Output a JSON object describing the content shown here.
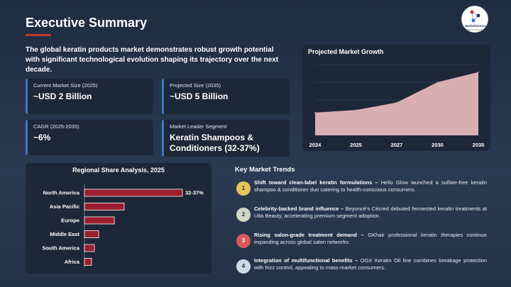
{
  "title": "Executive Summary",
  "logo": {
    "name": "MarketGenics",
    "tagline": "Ideas in innovation"
  },
  "intro": "The global keratin products market demonstrates robust growth potential with significant technological evolution shaping its trajectory over the next decade.",
  "stats": [
    {
      "label": "Current Market Size (2025)",
      "value": "~USD 2 Billion"
    },
    {
      "label": "Projected Size (2035)",
      "value": "~USD 5 Billion"
    },
    {
      "label": "CAGR (2025-2035)",
      "value": "~6%"
    },
    {
      "label": "Market Leader Segment",
      "value": "Keratin Shampoos & Conditioners (32-37%)"
    }
  ],
  "colors": {
    "accent_red": "#c0392b",
    "card_border": "#3a78c9",
    "area_fill": "#d8aeb3",
    "bar_fill": "#9b1f2e",
    "trend_1": "#e8c35a",
    "trend_2": "#cfd8c5",
    "trend_3": "#d9595a",
    "trend_4": "#cdd9e5"
  },
  "chart_data": [
    {
      "type": "area",
      "title": "Projected Market Growth",
      "categories": [
        "2024",
        "2025",
        "2027",
        "2030",
        "2035"
      ],
      "values": [
        1.8,
        2.0,
        2.6,
        4.2,
        5.0
      ],
      "grid": true
    },
    {
      "type": "bar",
      "orientation": "horizontal",
      "title": "Regional Share Analysis, 2025",
      "categories": [
        "North America",
        "Asia Pacific",
        "Europe",
        "Middle East",
        "South America",
        "Africa"
      ],
      "values": [
        34.5,
        14,
        10.5,
        5,
        3.5,
        2.5
      ],
      "data_labels": [
        "32-37%",
        "",
        "",
        "",
        "",
        ""
      ],
      "xlim": [
        0,
        40
      ]
    }
  ],
  "trends_title": "Key Market Trends",
  "trends": [
    {
      "num": "1",
      "heading": "Shift toward clean-label keratin formulations –",
      "text": " Hello Glow launched a sulfate-free keratin shampoo & conditioner duo catering to health-conscious consumers."
    },
    {
      "num": "2",
      "heading": "Celebrity-backed brand influence –",
      "text": " Beyoncé’s Cécred debuted fermented keratin treatments at Ulta Beauty, accelerating premium segment adoption."
    },
    {
      "num": "3",
      "heading": "Rising salon-grade treatment demand –",
      "text": " GKhair professional keratin therapies continue expanding across global salon networks."
    },
    {
      "num": "4",
      "heading": "Integration of multifunctional benefits –",
      "text": " OGX Keratin Oil line combines breakage protection with frizz control, appealing to mass-market consumers."
    }
  ]
}
